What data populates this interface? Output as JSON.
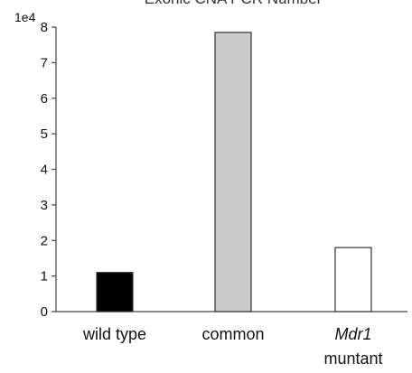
{
  "chart_data": {
    "type": "bar",
    "title": "Exonic CNA PCR Number",
    "axis_exponent_label": "1e4",
    "categories": [
      {
        "text": "wild type",
        "italic": "",
        "suffix": ""
      },
      {
        "text": "common",
        "italic": "",
        "suffix": ""
      },
      {
        "text": "",
        "italic": "Mdr1",
        "suffix": "muntant"
      }
    ],
    "values": [
      1.1,
      7.85,
      1.8
    ],
    "value_multiplier": 10000,
    "bar_colors": [
      "#000000",
      "#cccccc",
      "#ffffff"
    ],
    "yticks": [
      "0",
      "1",
      "2",
      "3",
      "4",
      "5",
      "6",
      "7",
      "8"
    ],
    "ylim": [
      0,
      8
    ],
    "grid": false,
    "legend": "none"
  }
}
